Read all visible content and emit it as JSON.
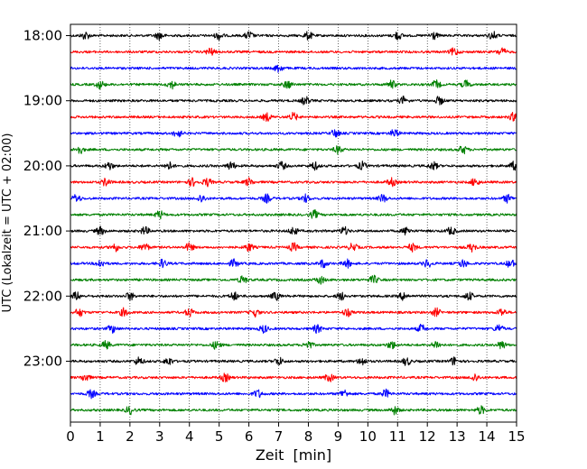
{
  "chart_data": {
    "type": "line",
    "title": "",
    "xlabel": "Zeit  [min]",
    "ylabel": "UTC (Lokalzeit = UTC + 02:00)",
    "xlim": [
      0,
      15
    ],
    "x_ticks": [
      "0",
      "1",
      "2",
      "3",
      "4",
      "5",
      "6",
      "7",
      "8",
      "9",
      "10",
      "11",
      "12",
      "13",
      "14",
      "15"
    ],
    "y_hour_labels": [
      "18:00",
      "19:00",
      "20:00",
      "21:00",
      "22:00",
      "23:00"
    ],
    "grid": "vertical dotted lines at each minute",
    "traces_per_hour": 4,
    "color_cycle": [
      "#000000",
      "#ff0000",
      "#0000ff",
      "#008000"
    ],
    "traces": [
      {
        "start": "18:00",
        "color": "#000000",
        "events_min": [
          0.5,
          3.0,
          5.0,
          6.0,
          8.0,
          11.0,
          12.2,
          14.2
        ]
      },
      {
        "start": "18:15",
        "color": "#ff0000",
        "events_min": [
          4.7,
          12.9,
          14.5
        ]
      },
      {
        "start": "18:30",
        "color": "#0000ff",
        "events_min": [
          7.0
        ]
      },
      {
        "start": "18:45",
        "color": "#008000",
        "events_min": [
          1.0,
          3.4,
          7.3,
          10.8,
          12.3,
          13.3
        ]
      },
      {
        "start": "19:00",
        "color": "#000000",
        "events_min": [
          7.9,
          11.2,
          12.4
        ]
      },
      {
        "start": "19:15",
        "color": "#ff0000",
        "events_min": [
          6.6,
          7.5,
          14.9
        ]
      },
      {
        "start": "19:30",
        "color": "#0000ff",
        "events_min": [
          3.6,
          8.9,
          10.9
        ]
      },
      {
        "start": "19:45",
        "color": "#008000",
        "events_min": [
          0.3,
          9.0,
          13.2
        ]
      },
      {
        "start": "20:00",
        "color": "#000000",
        "events_min": [
          1.3,
          3.3,
          5.4,
          7.1,
          8.2,
          9.8,
          12.2,
          14.9
        ]
      },
      {
        "start": "20:15",
        "color": "#ff0000",
        "events_min": [
          1.2,
          4.1,
          4.6,
          6.0,
          10.8,
          13.6
        ]
      },
      {
        "start": "20:30",
        "color": "#0000ff",
        "events_min": [
          0.2,
          4.4,
          6.6,
          7.9,
          10.5,
          14.7
        ]
      },
      {
        "start": "20:45",
        "color": "#008000",
        "events_min": [
          3.0,
          8.2
        ]
      },
      {
        "start": "21:00",
        "color": "#000000",
        "events_min": [
          1.0,
          2.5,
          7.5,
          9.2,
          11.3,
          12.8
        ]
      },
      {
        "start": "21:15",
        "color": "#ff0000",
        "events_min": [
          1.5,
          2.5,
          4.0,
          6.0,
          7.5,
          9.5,
          11.5,
          13.5
        ]
      },
      {
        "start": "21:30",
        "color": "#0000ff",
        "events_min": [
          1.0,
          3.1,
          5.5,
          8.5,
          9.3,
          12.0,
          13.2,
          14.8
        ]
      },
      {
        "start": "21:45",
        "color": "#008000",
        "events_min": [
          5.8,
          8.4,
          10.2
        ]
      },
      {
        "start": "22:00",
        "color": "#000000",
        "events_min": [
          0.2,
          2.0,
          5.5,
          6.9,
          9.1,
          11.2,
          13.4
        ]
      },
      {
        "start": "22:15",
        "color": "#ff0000",
        "events_min": [
          0.3,
          1.8,
          4.0,
          6.2,
          9.3,
          12.3,
          14.5
        ]
      },
      {
        "start": "22:30",
        "color": "#0000ff",
        "events_min": [
          1.4,
          6.5,
          8.3,
          11.8,
          14.4
        ]
      },
      {
        "start": "22:45",
        "color": "#008000",
        "events_min": [
          1.2,
          4.9,
          8.0,
          10.8,
          12.3,
          14.5
        ]
      },
      {
        "start": "23:00",
        "color": "#000000",
        "events_min": [
          2.3,
          3.3,
          7.0,
          9.8,
          11.3,
          12.9
        ]
      },
      {
        "start": "23:15",
        "color": "#ff0000",
        "events_min": [
          0.5,
          5.2,
          8.7,
          13.6
        ]
      },
      {
        "start": "23:30",
        "color": "#0000ff",
        "events_min": [
          0.7,
          6.3,
          9.2,
          10.6
        ]
      },
      {
        "start": "23:45",
        "color": "#008000",
        "events_min": [
          2.0,
          10.9,
          13.8
        ]
      }
    ]
  }
}
